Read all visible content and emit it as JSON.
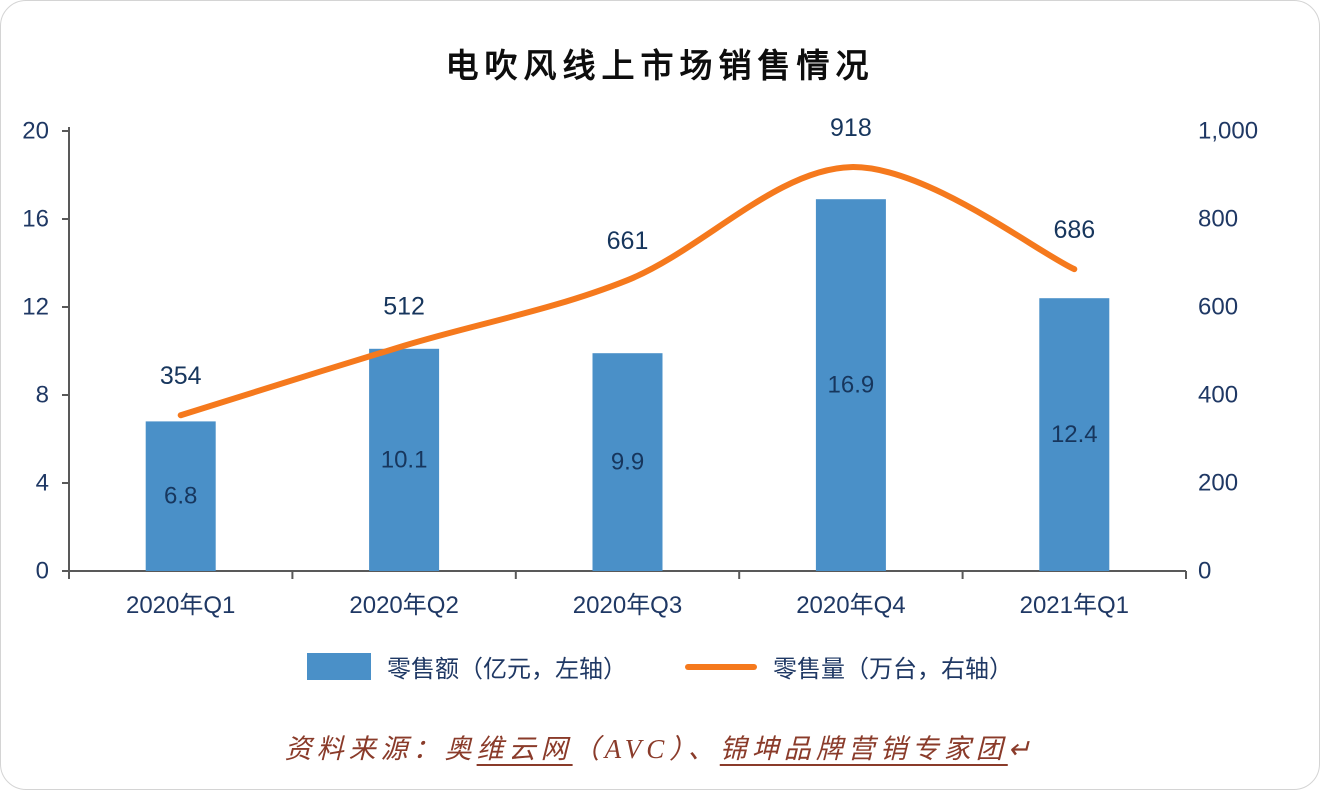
{
  "chart_data": {
    "type": "bar",
    "subtype": "bar+line combo",
    "title": "电吹风线上市场销售情况",
    "categories": [
      "2020年Q1",
      "2020年Q2",
      "2020年Q3",
      "2020年Q4",
      "2021年Q1"
    ],
    "series": [
      {
        "name": "零售额（亿元，左轴）",
        "type": "bar",
        "axis": "left",
        "values": [
          6.8,
          10.1,
          9.9,
          16.9,
          12.4
        ],
        "labels": [
          "6.8",
          "10.1",
          "9.9",
          "16.9",
          "12.4"
        ],
        "color": "#4a90c8"
      },
      {
        "name": "零售量（万台，右轴）",
        "type": "line",
        "axis": "right",
        "values": [
          354,
          512,
          661,
          918,
          686
        ],
        "labels": [
          "354",
          "512",
          "661",
          "918",
          "686"
        ],
        "color": "#f5791d"
      }
    ],
    "left_axis": {
      "min": 0,
      "max": 20,
      "tick_labels": [
        "0",
        "4",
        "8",
        "12",
        "16",
        "20"
      ]
    },
    "right_axis": {
      "min": 0,
      "max": 1000,
      "tick_labels": [
        "0",
        "200",
        "400",
        "600",
        "800",
        "1,000"
      ]
    },
    "grid": false,
    "legend_position": "bottom"
  },
  "source": {
    "segments": [
      {
        "text": "资料来源：奥",
        "underline": false
      },
      {
        "text": "维云网",
        "underline": true
      },
      {
        "text": "（AVC）、",
        "underline": false
      },
      {
        "text": "锦坤品牌营销专家团",
        "underline": true
      },
      {
        "text": "↵",
        "underline": false
      }
    ]
  },
  "colors": {
    "bar": "#4a90c8",
    "line": "#f5791d",
    "axis_text": "#1f3864",
    "value_text": "#17365d",
    "axis_line": "#595959",
    "source_text": "#8a3b2a"
  }
}
